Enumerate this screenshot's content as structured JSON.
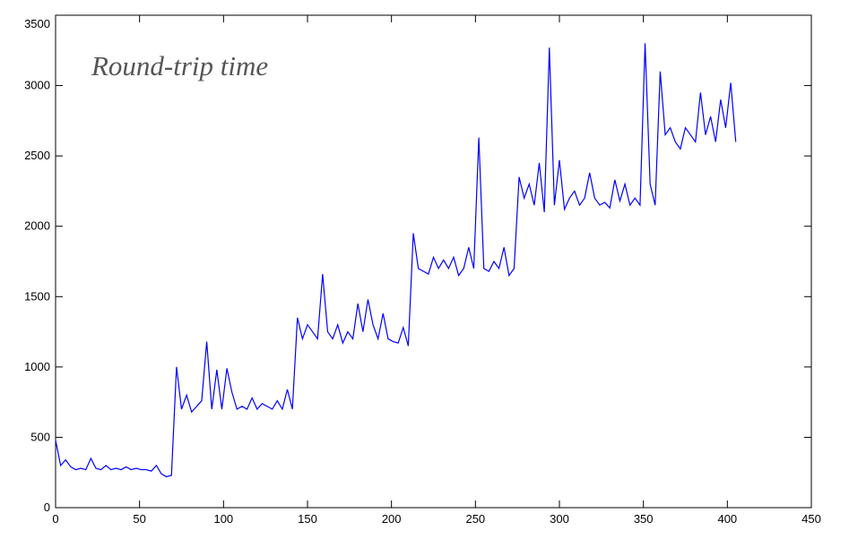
{
  "chart_data": {
    "type": "line",
    "title": "Round-trip time",
    "x": [
      0,
      3,
      6,
      9,
      12,
      15,
      18,
      21,
      24,
      27,
      30,
      33,
      36,
      39,
      42,
      45,
      48,
      51,
      54,
      57,
      60,
      63,
      66,
      69,
      72,
      75,
      78,
      81,
      84,
      87,
      90,
      93,
      96,
      99,
      102,
      105,
      108,
      111,
      114,
      117,
      120,
      123,
      126,
      129,
      132,
      135,
      138,
      141,
      144,
      147,
      150,
      153,
      156,
      159,
      162,
      165,
      168,
      171,
      174,
      177,
      180,
      183,
      186,
      189,
      192,
      195,
      198,
      201,
      204,
      207,
      210,
      213,
      216,
      219,
      222,
      225,
      228,
      231,
      234,
      237,
      240,
      243,
      246,
      249,
      252,
      255,
      258,
      261,
      264,
      267,
      270,
      273,
      276,
      279,
      282,
      285,
      288,
      291,
      294,
      297,
      300,
      303,
      306,
      309,
      312,
      315,
      318,
      321,
      324,
      327,
      330,
      333,
      336,
      339,
      342,
      345,
      348,
      351,
      354,
      357,
      360,
      363,
      366,
      369,
      372,
      375,
      378,
      381,
      384,
      387,
      390,
      393,
      396,
      399,
      402,
      405
    ],
    "series": [
      {
        "color": "#0000ff",
        "values": [
          480,
          300,
          340,
          290,
          270,
          280,
          270,
          350,
          280,
          270,
          300,
          270,
          280,
          270,
          290,
          270,
          280,
          270,
          270,
          260,
          300,
          240,
          220,
          230,
          1000,
          700,
          800,
          680,
          720,
          760,
          1180,
          700,
          980,
          700,
          990,
          820,
          700,
          720,
          700,
          780,
          700,
          740,
          720,
          700,
          760,
          700,
          840,
          700,
          1350,
          1200,
          1300,
          1250,
          1200,
          1660,
          1250,
          1200,
          1300,
          1170,
          1250,
          1200,
          1450,
          1250,
          1480,
          1300,
          1200,
          1380,
          1200,
          1180,
          1170,
          1280,
          1150,
          1950,
          1700,
          1680,
          1660,
          1780,
          1700,
          1760,
          1700,
          1780,
          1650,
          1700,
          1850,
          1700,
          2630,
          1700,
          1680,
          1750,
          1700,
          1850,
          1650,
          1700,
          2350,
          2200,
          2300,
          2150,
          2450,
          2100,
          3270,
          2150,
          2470,
          2120,
          2200,
          2250,
          2150,
          2200,
          2380,
          2200,
          2150,
          2170,
          2130,
          2330,
          2180,
          2300,
          2150,
          2200,
          2150,
          3300,
          2300,
          2150,
          3100,
          2650,
          2700,
          2600,
          2550,
          2700,
          2650,
          2600,
          2950,
          2650,
          2780,
          2600,
          2900,
          2700,
          3020,
          2600
        ]
      }
    ],
    "xlim": [
      0,
      450
    ],
    "xticks": [
      0,
      50,
      100,
      150,
      200,
      250,
      300,
      350,
      400,
      450
    ],
    "ylim": [
      0,
      3500
    ],
    "yticks": [
      0,
      500,
      1000,
      1500,
      2000,
      2500,
      3000,
      3500
    ],
    "grid": false
  }
}
